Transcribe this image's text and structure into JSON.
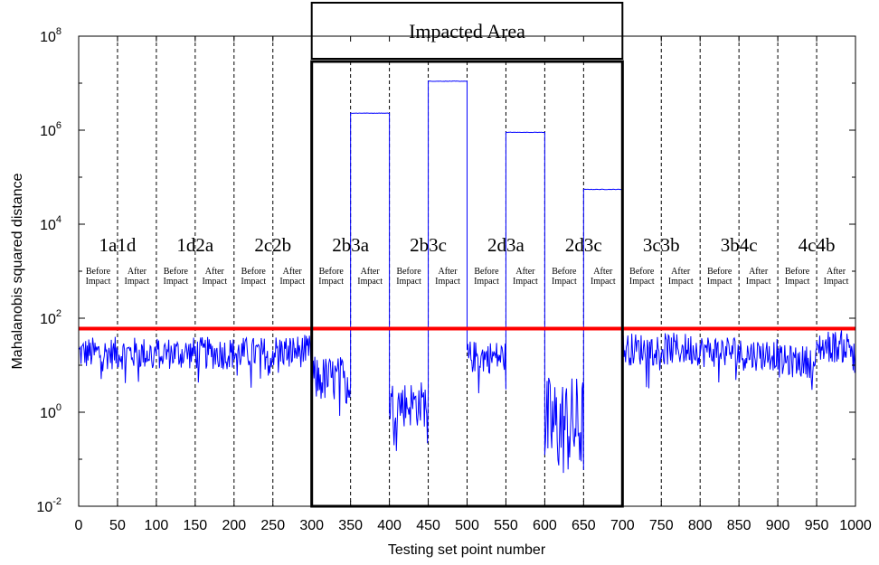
{
  "chart_data": {
    "type": "line",
    "xlabel": "Testing set point number",
    "ylabel": "Mahalanobis squared distance",
    "xlim": [
      0,
      1000
    ],
    "ylim_log10": [
      -2,
      8
    ],
    "yscale": "log",
    "grid": "dashed vertical lines every 50 points",
    "x_ticks": [
      0,
      50,
      100,
      150,
      200,
      250,
      300,
      350,
      400,
      450,
      500,
      550,
      600,
      650,
      700,
      750,
      800,
      850,
      900,
      950,
      1000
    ],
    "y_ticks": [
      {
        "base": "10",
        "exp": "-2"
      },
      {
        "base": "10",
        "exp": "0"
      },
      {
        "base": "10",
        "exp": "2"
      },
      {
        "base": "10",
        "exp": "4"
      },
      {
        "base": "10",
        "exp": "6"
      },
      {
        "base": "10",
        "exp": "8"
      }
    ],
    "threshold": {
      "value": 60,
      "color": "#ff0000"
    },
    "impacted_area": {
      "label": "Impacted Area",
      "x_range": [
        300,
        700
      ]
    },
    "group_labels": [
      {
        "text": "1a1d",
        "x": 50
      },
      {
        "text": "1d2a",
        "x": 150
      },
      {
        "text": "2c2b",
        "x": 250
      },
      {
        "text": "2b3a",
        "x": 350
      },
      {
        "text": "2b3c",
        "x": 450
      },
      {
        "text": "2d3a",
        "x": 550
      },
      {
        "text": "2d3c",
        "x": 650
      },
      {
        "text": "3c3b",
        "x": 750
      },
      {
        "text": "3b4c",
        "x": 850
      },
      {
        "text": "4c4b",
        "x": 950
      }
    ],
    "phase_labels": {
      "before": [
        "Before",
        "Impact"
      ],
      "after": [
        "After",
        "Impact"
      ]
    },
    "series": [
      {
        "color": "#0000ff",
        "segments": [
          {
            "x_range": [
              0,
              50
            ],
            "level": 18
          },
          {
            "x_range": [
              50,
              100
            ],
            "level": 18
          },
          {
            "x_range": [
              100,
              150
            ],
            "level": 18
          },
          {
            "x_range": [
              150,
              200
            ],
            "level": 18
          },
          {
            "x_range": [
              200,
              250
            ],
            "level": 18
          },
          {
            "x_range": [
              250,
              300
            ],
            "level": 20
          },
          {
            "x_range": [
              300,
              350
            ],
            "level": 5
          },
          {
            "x_range": [
              350,
              400
            ],
            "level": 2300000
          },
          {
            "x_range": [
              400,
              450
            ],
            "level": 1.5
          },
          {
            "x_range": [
              450,
              500
            ],
            "level": 11000000
          },
          {
            "x_range": [
              500,
              550
            ],
            "level": 15
          },
          {
            "x_range": [
              550,
              600
            ],
            "level": 900000
          },
          {
            "x_range": [
              600,
              650
            ],
            "level": 0.5
          },
          {
            "x_range": [
              650,
              700
            ],
            "level": 55000
          },
          {
            "x_range": [
              700,
              750
            ],
            "level": 22
          },
          {
            "x_range": [
              750,
              800
            ],
            "level": 22
          },
          {
            "x_range": [
              800,
              850
            ],
            "level": 20
          },
          {
            "x_range": [
              850,
              900
            ],
            "level": 17
          },
          {
            "x_range": [
              900,
              950
            ],
            "level": 12
          },
          {
            "x_range": [
              950,
              1000
            ],
            "level": 25
          }
        ]
      }
    ]
  }
}
